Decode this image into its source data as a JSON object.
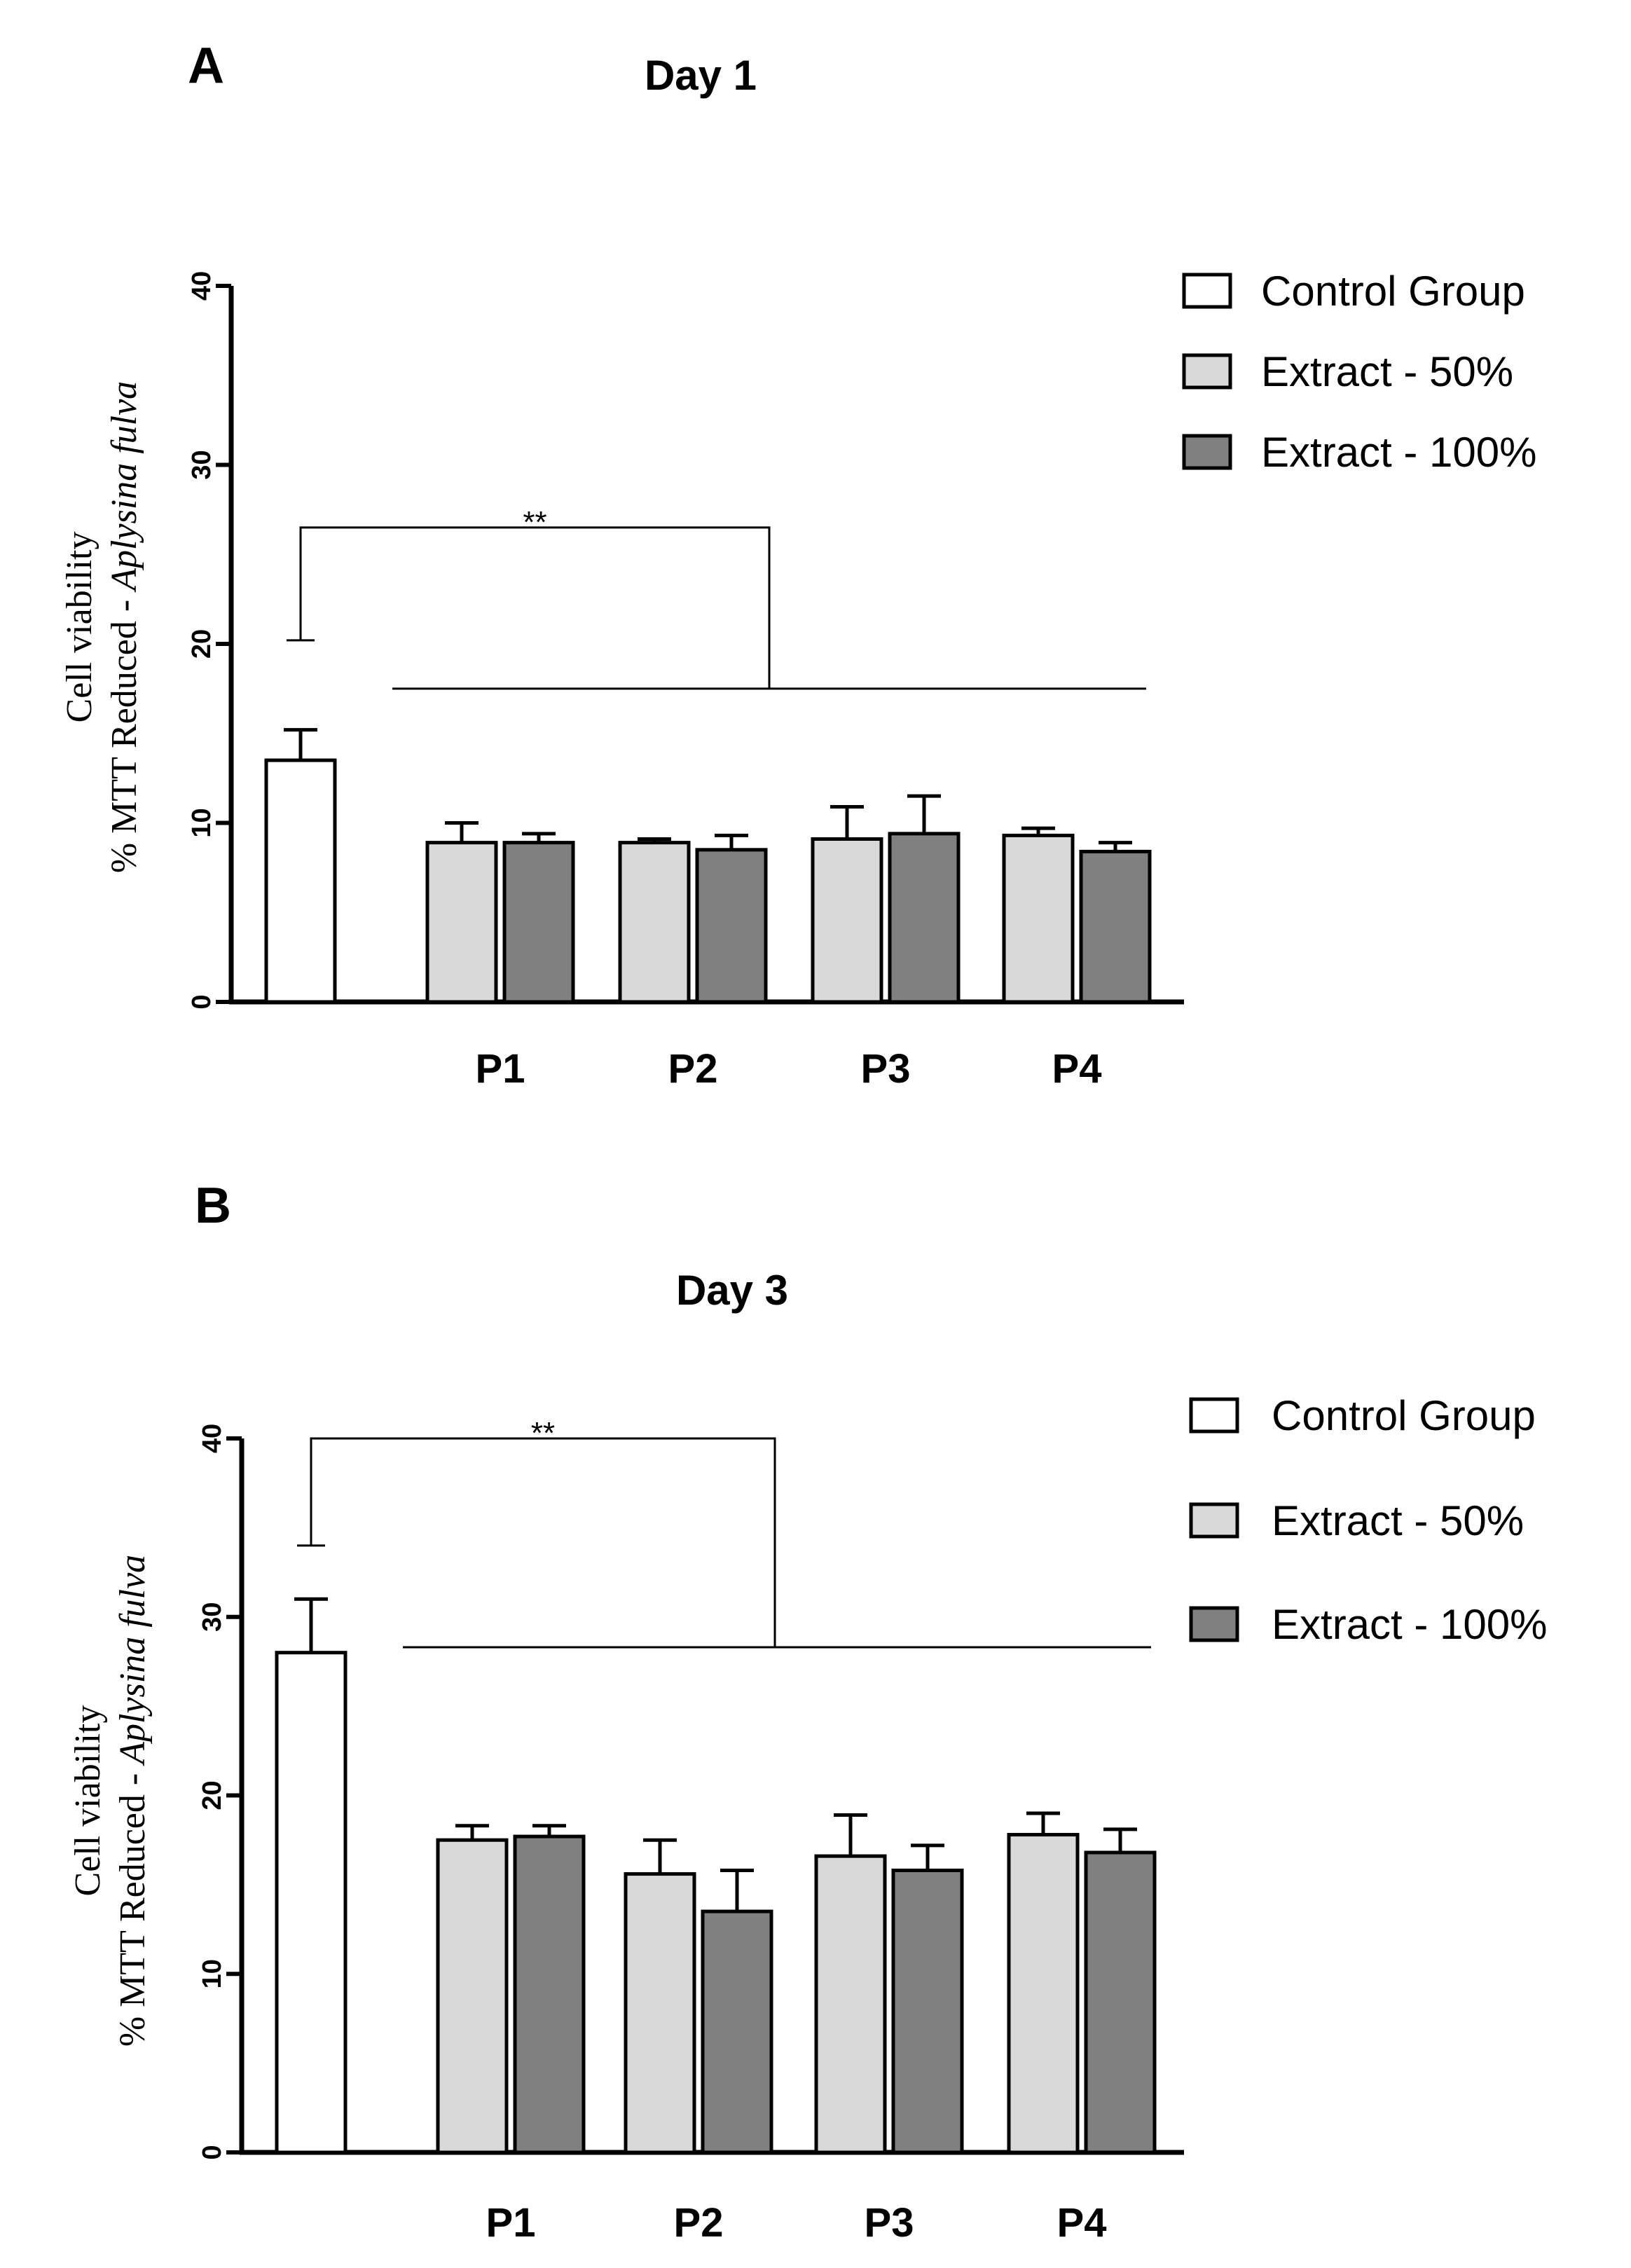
{
  "colors": {
    "control": "#ffffff",
    "extract_50": "#d9d9d9",
    "extract_100": "#808080",
    "stroke": "#000000"
  },
  "chart_data": [
    {
      "panel": "A",
      "type": "bar",
      "title": "Day 1",
      "ylabel_line1": "Cell viability",
      "ylabel_line2_prefix": "% MTT Reduced - ",
      "ylabel_line2_italic": "Aplysina fulva",
      "ylim": [
        0,
        40
      ],
      "yticks": [
        0,
        10,
        20,
        30,
        40
      ],
      "control": {
        "value": 13.5,
        "error": 1.7
      },
      "categories": [
        "P1",
        "P2",
        "P3",
        "P4"
      ],
      "series": [
        {
          "name": "Extract - 50%",
          "values": [
            8.9,
            8.9,
            9.1,
            9.3
          ],
          "errors": [
            1.1,
            0.2,
            1.8,
            0.4
          ]
        },
        {
          "name": "Extract - 100%",
          "values": [
            8.9,
            8.5,
            9.4,
            8.4
          ],
          "errors": [
            0.5,
            0.8,
            2.1,
            0.5
          ]
        }
      ],
      "legend": [
        "Control Group",
        "Extract - 50%",
        "Extract - 100%"
      ],
      "legend_position": "top-right",
      "significance": {
        "label": "**",
        "bracket_top": 26.5,
        "control_whisker": 20.2,
        "line_level": 17.5
      }
    },
    {
      "panel": "B",
      "type": "bar",
      "title": "Day 3",
      "ylabel_line1": "Cell viability",
      "ylabel_line2_prefix": "% MTT Reduced - ",
      "ylabel_line2_italic": "Aplysina fulva",
      "ylim": [
        0,
        40
      ],
      "yticks": [
        0,
        10,
        20,
        30,
        40
      ],
      "control": {
        "value": 28.0,
        "error": 3.0
      },
      "categories": [
        "P1",
        "P2",
        "P3",
        "P4"
      ],
      "series": [
        {
          "name": "Extract - 50%",
          "values": [
            17.5,
            15.6,
            16.6,
            17.8
          ],
          "errors": [
            0.8,
            1.9,
            2.3,
            1.2
          ]
        },
        {
          "name": "Extract - 100%",
          "values": [
            17.7,
            13.5,
            15.8,
            16.8
          ],
          "errors": [
            0.6,
            2.3,
            1.4,
            1.3
          ]
        }
      ],
      "legend": [
        "Control Group",
        "Extract - 50%",
        "Extract - 100%"
      ],
      "legend_position": "top-right",
      "significance": {
        "label": "**",
        "bracket_top": 40.0,
        "control_whisker": 34.0,
        "line_level": 28.3
      }
    }
  ]
}
